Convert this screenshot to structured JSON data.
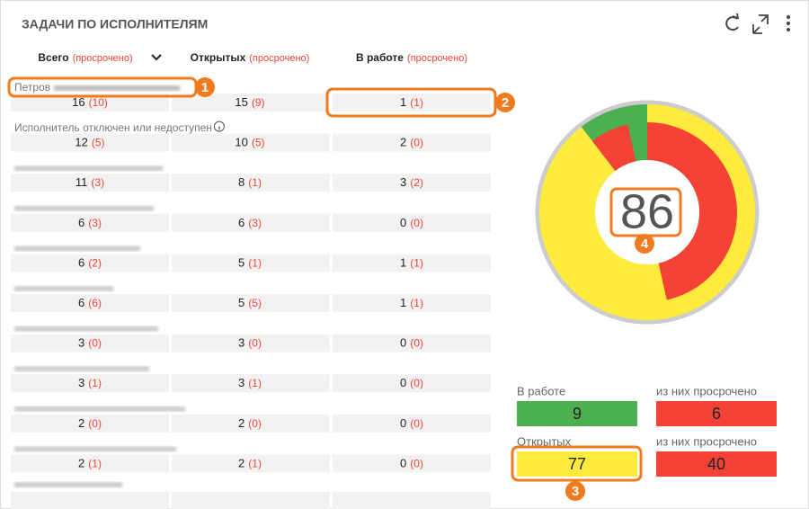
{
  "header": {
    "title": "ЗАДАЧИ ПО ИСПОЛНИТЕЛЯМ"
  },
  "columns": [
    {
      "label": "Всего",
      "note": "(просрочено)"
    },
    {
      "label": "Открытых",
      "note": "(просрочено)"
    },
    {
      "label": "В работе",
      "note": "(просрочено)"
    }
  ],
  "table": {
    "rows": [
      {
        "name": "Петров",
        "cells": [
          [
            "16",
            "(10)"
          ],
          [
            "15",
            "(9)"
          ],
          [
            "1",
            "(1)"
          ]
        ]
      },
      {
        "name": "Исполнитель отключен или недоступен",
        "cells": [
          [
            "12",
            "(5)"
          ],
          [
            "10",
            "(5)"
          ],
          [
            "2",
            "(0)"
          ]
        ]
      },
      {
        "cells": [
          [
            "11",
            "(3)"
          ],
          [
            "8",
            "(1)"
          ],
          [
            "3",
            "(2)"
          ]
        ]
      },
      {
        "cells": [
          [
            "6",
            "(3)"
          ],
          [
            "6",
            "(3)"
          ],
          [
            "0",
            "(0)"
          ]
        ]
      },
      {
        "cells": [
          [
            "6",
            "(2)"
          ],
          [
            "5",
            "(1)"
          ],
          [
            "1",
            "(1)"
          ]
        ]
      },
      {
        "cells": [
          [
            "6",
            "(6)"
          ],
          [
            "5",
            "(5)"
          ],
          [
            "1",
            "(1)"
          ]
        ]
      },
      {
        "cells": [
          [
            "3",
            "(0)"
          ],
          [
            "3",
            "(0)"
          ],
          [
            "0",
            "(0)"
          ]
        ]
      },
      {
        "cells": [
          [
            "3",
            "(1)"
          ],
          [
            "3",
            "(1)"
          ],
          [
            "0",
            "(0)"
          ]
        ]
      },
      {
        "cells": [
          [
            "2",
            "(0)"
          ],
          [
            "2",
            "(0)"
          ],
          [
            "0",
            "(0)"
          ]
        ]
      },
      {
        "cells": [
          [
            "2",
            "(1)"
          ],
          [
            "2",
            "(1)"
          ],
          [
            "0",
            "(0)"
          ]
        ]
      }
    ]
  },
  "donut": {
    "center": 86
  },
  "legend": [
    {
      "label": "В работе",
      "value": 9,
      "color": "#4caf50"
    },
    {
      "label": "из них просрочено",
      "value": 6,
      "color": "#f44336"
    },
    {
      "label": "Открытых",
      "value": 77,
      "color": "#ffeb3b"
    },
    {
      "label": "из них просрочено",
      "value": 40,
      "color": "#f44336"
    }
  ],
  "callouts": [
    "1",
    "2",
    "3",
    "4"
  ]
}
